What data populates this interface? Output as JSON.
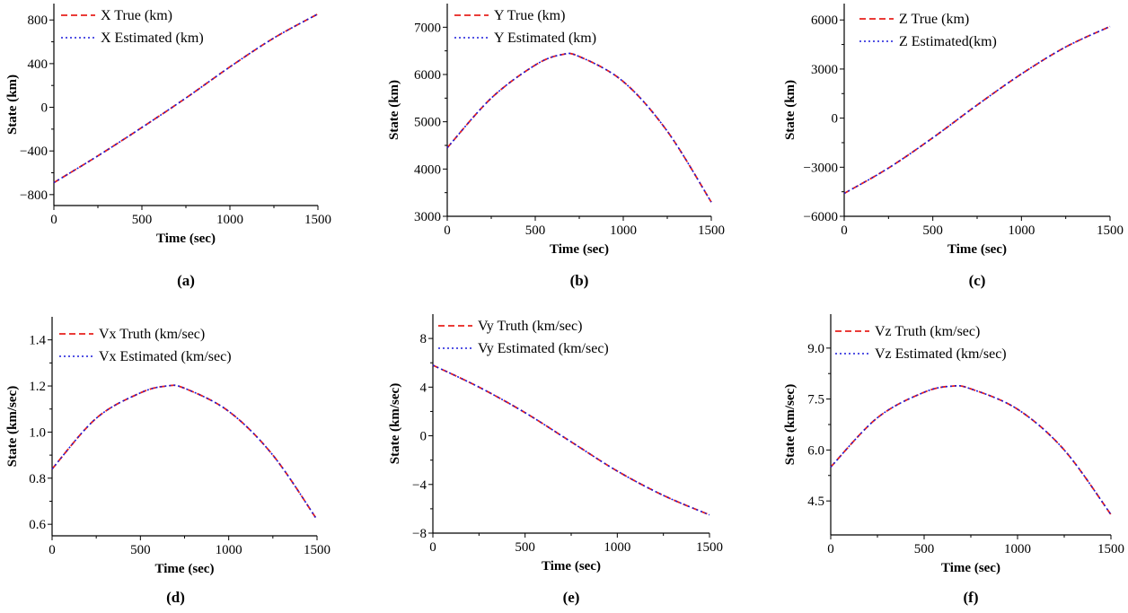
{
  "colors": {
    "true_line": "#e8211c",
    "est_line": "#1a1adb",
    "axis": "#000000"
  },
  "chart_data": [
    {
      "type": "line",
      "caption": "(a)",
      "xlabel": "Time (sec)",
      "ylabel": "State (km)",
      "xlim": [
        0,
        1500
      ],
      "ylim": [
        -900,
        950
      ],
      "xticks": [
        0,
        500,
        1000,
        1500
      ],
      "xtick_labels": [
        "0",
        "500",
        "1000",
        "1500"
      ],
      "yticks": [
        -800,
        -400,
        0,
        400,
        800
      ],
      "ytick_labels": [
        "−800",
        "−400",
        "0",
        "400",
        "800"
      ],
      "series": [
        {
          "name": "X True (km)",
          "style": "dashed",
          "color": "#e8211c",
          "x": [
            0,
            250,
            500,
            750,
            1000,
            1250,
            1500
          ],
          "y": [
            -690,
            -445,
            -185,
            85,
            370,
            635,
            855
          ]
        },
        {
          "name": "X Estimated (km)",
          "style": "dotted",
          "color": "#1a1adb",
          "x": [
            0,
            250,
            500,
            750,
            1000,
            1250,
            1500
          ],
          "y": [
            -690,
            -445,
            -185,
            85,
            370,
            635,
            855
          ]
        }
      ]
    },
    {
      "type": "line",
      "caption": "(b)",
      "xlabel": "Time (sec)",
      "ylabel": "State (km)",
      "xlim": [
        0,
        1500
      ],
      "ylim": [
        3000,
        7500
      ],
      "xticks": [
        0,
        500,
        1000,
        1500
      ],
      "xtick_labels": [
        "0",
        "500",
        "1000",
        "1500"
      ],
      "yticks": [
        3000,
        4000,
        5000,
        6000,
        7000
      ],
      "ytick_labels": [
        "3000",
        "4000",
        "5000",
        "6000",
        "7000"
      ],
      "series": [
        {
          "name": "Y True (km)",
          "style": "dashed",
          "color": "#e8211c",
          "x": [
            0,
            250,
            500,
            650,
            750,
            1000,
            1250,
            1500
          ],
          "y": [
            4450,
            5500,
            6200,
            6420,
            6380,
            5850,
            4800,
            3300
          ]
        },
        {
          "name": "Y Estimated (km)",
          "style": "dotted",
          "color": "#1a1adb",
          "x": [
            0,
            250,
            500,
            650,
            750,
            1000,
            1250,
            1500
          ],
          "y": [
            4450,
            5500,
            6200,
            6420,
            6380,
            5850,
            4800,
            3300
          ]
        }
      ]
    },
    {
      "type": "line",
      "caption": "(c)",
      "xlabel": "Time (sec)",
      "ylabel": "State (km)",
      "xlim": [
        0,
        1500
      ],
      "ylim": [
        -6000,
        7000
      ],
      "xticks": [
        0,
        500,
        1000,
        1500
      ],
      "xtick_labels": [
        "0",
        "500",
        "1000",
        "1500"
      ],
      "yticks": [
        -6000,
        -3000,
        0,
        3000,
        6000
      ],
      "ytick_labels": [
        "−6000",
        "−3000",
        "0",
        "3000",
        "6000"
      ],
      "series": [
        {
          "name": "Z True (km)",
          "style": "dashed",
          "color": "#e8211c",
          "x": [
            0,
            250,
            500,
            750,
            1000,
            1250,
            1500
          ],
          "y": [
            -4600,
            -3050,
            -1200,
            800,
            2700,
            4350,
            5600
          ]
        },
        {
          "name": "Z Estimated(km)",
          "style": "dotted",
          "color": "#1a1adb",
          "x": [
            0,
            250,
            500,
            750,
            1000,
            1250,
            1500
          ],
          "y": [
            -4600,
            -3050,
            -1200,
            800,
            2700,
            4350,
            5600
          ]
        }
      ]
    },
    {
      "type": "line",
      "caption": "(d)",
      "xlabel": "Time (sec)",
      "ylabel": "State (km/sec)",
      "xlim": [
        0,
        1500
      ],
      "ylim": [
        0.55,
        1.5
      ],
      "xticks": [
        0,
        500,
        1000,
        1500
      ],
      "xtick_labels": [
        "0",
        "500",
        "1000",
        "1500"
      ],
      "yticks": [
        0.6,
        0.8,
        1.0,
        1.2,
        1.4
      ],
      "ytick_labels": [
        "0.6",
        "0.8",
        "1.0",
        "1.2",
        "1.4"
      ],
      "series": [
        {
          "name": "Vx Truth (km/sec)",
          "style": "dashed",
          "color": "#e8211c",
          "x": [
            0,
            250,
            500,
            650,
            750,
            1000,
            1250,
            1500
          ],
          "y": [
            0.84,
            1.06,
            1.17,
            1.2,
            1.19,
            1.09,
            0.9,
            0.62
          ]
        },
        {
          "name": "Vx Estimated (km/sec)",
          "style": "dotted",
          "color": "#1a1adb",
          "x": [
            0,
            250,
            500,
            650,
            750,
            1000,
            1250,
            1500
          ],
          "y": [
            0.84,
            1.06,
            1.17,
            1.2,
            1.19,
            1.09,
            0.9,
            0.62
          ]
        }
      ]
    },
    {
      "type": "line",
      "caption": "(e)",
      "xlabel": "Time (sec)",
      "ylabel": "State (km/sec)",
      "xlim": [
        0,
        1500
      ],
      "ylim": [
        -8,
        10
      ],
      "xticks": [
        0,
        500,
        1000,
        1500
      ],
      "xtick_labels": [
        "0",
        "500",
        "1000",
        "1500"
      ],
      "yticks": [
        -8,
        -4,
        0,
        4,
        8
      ],
      "ytick_labels": [
        "−8",
        "−4",
        "0",
        "4",
        "8"
      ],
      "series": [
        {
          "name": "Vy Truth (km/sec)",
          "style": "dashed",
          "color": "#e8211c",
          "x": [
            0,
            250,
            500,
            750,
            1000,
            1250,
            1500
          ],
          "y": [
            5.8,
            4.0,
            1.9,
            -0.5,
            -2.9,
            -4.9,
            -6.5
          ]
        },
        {
          "name": "Vy Estimated (km/sec)",
          "style": "dotted",
          "color": "#1a1adb",
          "x": [
            0,
            250,
            500,
            750,
            1000,
            1250,
            1500
          ],
          "y": [
            5.8,
            4.0,
            1.9,
            -0.5,
            -2.9,
            -4.9,
            -6.5
          ]
        }
      ]
    },
    {
      "type": "line",
      "caption": "(f)",
      "xlabel": "Time (sec)",
      "ylabel": "State (km/sec)",
      "xlim": [
        0,
        1500
      ],
      "ylim": [
        3.5,
        10
      ],
      "xticks": [
        0,
        500,
        1000,
        1500
      ],
      "xtick_labels": [
        "0",
        "500",
        "1000",
        "1500"
      ],
      "yticks": [
        4.5,
        6.0,
        7.5,
        9.0
      ],
      "ytick_labels": [
        "4.5",
        "6.0",
        "7.5",
        "9.0"
      ],
      "series": [
        {
          "name": "Vz Truth (km/sec)",
          "style": "dashed",
          "color": "#e8211c",
          "x": [
            0,
            250,
            500,
            650,
            750,
            1000,
            1250,
            1500
          ],
          "y": [
            5.5,
            6.95,
            7.7,
            7.88,
            7.8,
            7.2,
            6.0,
            4.1
          ]
        },
        {
          "name": "Vz Estimated (km/sec)",
          "style": "dotted",
          "color": "#1a1adb",
          "x": [
            0,
            250,
            500,
            650,
            750,
            1000,
            1250,
            1500
          ],
          "y": [
            5.5,
            6.95,
            7.7,
            7.88,
            7.8,
            7.2,
            6.0,
            4.1
          ]
        }
      ]
    }
  ]
}
